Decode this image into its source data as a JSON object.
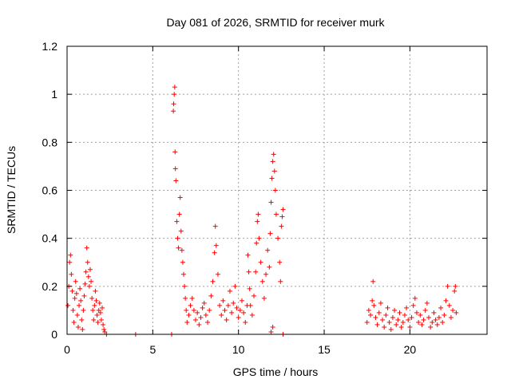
{
  "chart_data": {
    "type": "scatter",
    "title": "Day 081 of 2026, SRMTID for receiver murk",
    "xlabel": "GPS time / hours",
    "ylabel": "SRMTID / TECUs",
    "xlim": [
      0,
      24.5
    ],
    "ylim": [
      0,
      1.2
    ],
    "x_ticks": [
      "0",
      "5",
      "10",
      "15",
      "20"
    ],
    "y_ticks": [
      "0",
      "0.2",
      "0.4",
      "0.6",
      "0.8",
      "1",
      "1.2"
    ],
    "grid": true,
    "marker": "plus",
    "series": [
      {
        "color": "#ff0000",
        "points": [
          [
            0.05,
            0.12
          ],
          [
            0.1,
            0.2
          ],
          [
            0.15,
            0.3
          ],
          [
            0.2,
            0.33
          ],
          [
            0.25,
            0.25
          ],
          [
            0.3,
            0.18
          ],
          [
            0.35,
            0.1
          ],
          [
            0.4,
            0.05
          ],
          [
            0.45,
            0.15
          ],
          [
            0.5,
            0.22
          ],
          [
            0.55,
            0.17
          ],
          [
            0.6,
            0.08
          ],
          [
            0.65,
            0.03
          ],
          [
            0.7,
            0.12
          ],
          [
            0.75,
            0.19
          ],
          [
            0.8,
            0.14
          ],
          [
            0.85,
            0.06
          ],
          [
            0.9,
            0.02
          ],
          [
            0.95,
            0.1
          ],
          [
            1.0,
            0.16
          ],
          [
            1.05,
            0.21
          ],
          [
            1.1,
            0.26
          ],
          [
            1.15,
            0.36
          ],
          [
            1.2,
            0.3
          ],
          [
            1.25,
            0.24
          ],
          [
            1.3,
            0.2
          ],
          [
            1.35,
            0.27
          ],
          [
            1.4,
            0.22
          ],
          [
            1.45,
            0.15
          ],
          [
            1.5,
            0.1
          ],
          [
            1.55,
            0.06
          ],
          [
            1.6,
            0.12
          ],
          [
            1.65,
            0.18
          ],
          [
            1.7,
            0.14
          ],
          [
            1.75,
            0.08
          ],
          [
            1.8,
            0.05
          ],
          [
            1.85,
            0.1
          ],
          [
            1.9,
            0.13
          ],
          [
            1.95,
            0.09
          ],
          [
            2.0,
            0.06
          ],
          [
            2.05,
            0.11
          ],
          [
            2.1,
            0.04
          ],
          [
            2.15,
            0.02
          ],
          [
            2.2,
            0.01
          ],
          [
            2.3,
            0.0
          ],
          [
            4.0,
            0.0
          ],
          [
            6.1,
            0.0
          ],
          [
            6.2,
            0.93
          ],
          [
            6.22,
            0.96
          ],
          [
            6.25,
            1.0
          ],
          [
            6.28,
            1.03
          ],
          [
            6.3,
            0.76
          ],
          [
            6.32,
            0.69
          ],
          [
            6.35,
            0.64
          ],
          [
            6.4,
            0.47
          ],
          [
            6.45,
            0.4
          ],
          [
            6.5,
            0.36
          ],
          [
            6.55,
            0.5
          ],
          [
            6.6,
            0.57
          ],
          [
            6.65,
            0.43
          ],
          [
            6.7,
            0.35
          ],
          [
            6.75,
            0.3
          ],
          [
            6.8,
            0.25
          ],
          [
            6.85,
            0.2
          ],
          [
            6.9,
            0.15
          ],
          [
            6.95,
            0.1
          ],
          [
            7.0,
            0.05
          ],
          [
            7.1,
            0.08
          ],
          [
            7.2,
            0.12
          ],
          [
            7.3,
            0.15
          ],
          [
            7.4,
            0.1
          ],
          [
            7.5,
            0.06
          ],
          [
            7.6,
            0.09
          ],
          [
            7.7,
            0.04
          ],
          [
            7.8,
            0.07
          ],
          [
            7.9,
            0.11
          ],
          [
            8.0,
            0.13
          ],
          [
            8.1,
            0.08
          ],
          [
            8.2,
            0.05
          ],
          [
            8.3,
            0.1
          ],
          [
            8.4,
            0.16
          ],
          [
            8.5,
            0.22
          ],
          [
            8.6,
            0.34
          ],
          [
            8.65,
            0.45
          ],
          [
            8.7,
            0.37
          ],
          [
            8.8,
            0.25
          ],
          [
            8.9,
            0.12
          ],
          [
            9.0,
            0.08
          ],
          [
            9.1,
            0.14
          ],
          [
            9.2,
            0.1
          ],
          [
            9.3,
            0.06
          ],
          [
            9.4,
            0.12
          ],
          [
            9.5,
            0.18
          ],
          [
            9.6,
            0.09
          ],
          [
            9.7,
            0.13
          ],
          [
            9.8,
            0.2
          ],
          [
            9.9,
            0.11
          ],
          [
            10.0,
            0.07
          ],
          [
            10.1,
            0.1
          ],
          [
            10.2,
            0.14
          ],
          [
            10.3,
            0.09
          ],
          [
            10.4,
            0.05
          ],
          [
            10.5,
            0.12
          ],
          [
            10.55,
            0.33
          ],
          [
            10.6,
            0.26
          ],
          [
            10.65,
            0.19
          ],
          [
            10.7,
            0.12
          ],
          [
            10.8,
            0.08
          ],
          [
            10.9,
            0.16
          ],
          [
            11.0,
            0.26
          ],
          [
            11.05,
            0.38
          ],
          [
            11.1,
            0.47
          ],
          [
            11.15,
            0.5
          ],
          [
            11.2,
            0.4
          ],
          [
            11.3,
            0.3
          ],
          [
            11.4,
            0.22
          ],
          [
            11.5,
            0.15
          ],
          [
            11.6,
            0.25
          ],
          [
            11.7,
            0.35
          ],
          [
            11.8,
            0.28
          ],
          [
            11.85,
            0.42
          ],
          [
            11.9,
            0.55
          ],
          [
            11.95,
            0.65
          ],
          [
            12.0,
            0.72
          ],
          [
            12.05,
            0.75
          ],
          [
            12.1,
            0.68
          ],
          [
            12.15,
            0.6
          ],
          [
            12.2,
            0.5
          ],
          [
            12.3,
            0.4
          ],
          [
            12.4,
            0.3
          ],
          [
            12.45,
            0.22
          ],
          [
            12.5,
            0.45
          ],
          [
            12.55,
            0.49
          ],
          [
            12.6,
            0.52
          ],
          [
            12.0,
            0.03
          ],
          [
            11.9,
            0.01
          ],
          [
            12.6,
            0.0
          ],
          [
            17.5,
            0.05
          ],
          [
            17.6,
            0.1
          ],
          [
            17.7,
            0.08
          ],
          [
            17.8,
            0.14
          ],
          [
            17.85,
            0.22
          ],
          [
            17.9,
            0.12
          ],
          [
            18.0,
            0.07
          ],
          [
            18.1,
            0.04
          ],
          [
            18.2,
            0.09
          ],
          [
            18.3,
            0.13
          ],
          [
            18.4,
            0.06
          ],
          [
            18.5,
            0.03
          ],
          [
            18.6,
            0.08
          ],
          [
            18.7,
            0.11
          ],
          [
            18.8,
            0.05
          ],
          [
            18.9,
            0.02
          ],
          [
            19.0,
            0.07
          ],
          [
            19.1,
            0.1
          ],
          [
            19.2,
            0.04
          ],
          [
            19.3,
            0.06
          ],
          [
            19.4,
            0.09
          ],
          [
            19.5,
            0.03
          ],
          [
            19.6,
            0.05
          ],
          [
            19.7,
            0.08
          ],
          [
            19.8,
            0.11
          ],
          [
            19.9,
            0.06
          ],
          [
            20.0,
            0.03
          ],
          [
            20.1,
            0.07
          ],
          [
            20.2,
            0.12
          ],
          [
            20.3,
            0.15
          ],
          [
            20.4,
            0.09
          ],
          [
            20.5,
            0.05
          ],
          [
            20.6,
            0.08
          ],
          [
            20.7,
            0.04
          ],
          [
            20.8,
            0.06
          ],
          [
            20.9,
            0.1
          ],
          [
            21.0,
            0.13
          ],
          [
            21.1,
            0.07
          ],
          [
            21.2,
            0.03
          ],
          [
            21.3,
            0.05
          ],
          [
            21.4,
            0.09
          ],
          [
            21.5,
            0.06
          ],
          [
            21.6,
            0.04
          ],
          [
            21.7,
            0.07
          ],
          [
            21.8,
            0.11
          ],
          [
            21.9,
            0.05
          ],
          [
            22.0,
            0.08
          ],
          [
            22.1,
            0.14
          ],
          [
            22.2,
            0.2
          ],
          [
            22.3,
            0.12
          ],
          [
            22.4,
            0.07
          ],
          [
            22.5,
            0.1
          ],
          [
            22.6,
            0.18
          ],
          [
            22.65,
            0.2
          ],
          [
            22.7,
            0.09
          ]
        ]
      }
    ]
  }
}
